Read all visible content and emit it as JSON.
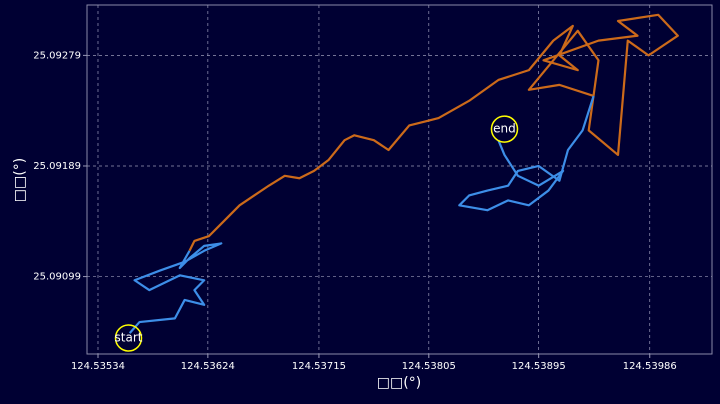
{
  "chart_data": {
    "type": "line",
    "xlabel": "□□(°)",
    "ylabel": "□□(°)",
    "xlim": [
      124.53525,
      124.54037
    ],
    "ylim": [
      25.09036,
      25.0932
    ],
    "xticks": [
      124.53534,
      124.53624,
      124.53715,
      124.53805,
      124.53895,
      124.53986
    ],
    "yticks": [
      25.09099,
      25.09189,
      25.09279
    ],
    "grid": true,
    "series": [
      {
        "color": "#3d8ee8",
        "x": [
          124.5356,
          124.53568,
          124.53597,
          124.53605,
          124.53621,
          124.53613,
          124.53621,
          124.53601,
          124.53576,
          124.53564,
          124.53585,
          124.53605,
          124.53621,
          124.53635,
          124.53621,
          124.53609,
          124.53601,
          124.53609
        ],
        "values": [
          25.09053,
          25.09062,
          25.09065,
          25.0908,
          25.09076,
          25.09088,
          25.09096,
          25.091,
          25.09088,
          25.09096,
          25.09104,
          25.09111,
          25.0912,
          25.09126,
          25.09124,
          25.09114,
          25.09106,
          25.0912
        ]
      },
      {
        "color": "#cc6a1a",
        "x": [
          124.53609,
          124.53613,
          124.53625,
          124.53638,
          124.5365,
          124.53662,
          124.53674,
          124.53687,
          124.53699,
          124.53711,
          124.53723,
          124.53736,
          124.53744,
          124.5376,
          124.53772,
          124.53789,
          124.53805,
          124.53813,
          124.53838,
          124.53862,
          124.53887,
          124.53907,
          124.53923,
          124.53912,
          124.53927,
          124.53899,
          124.53944,
          124.53976,
          124.5396,
          124.53993,
          124.54009,
          124.53985,
          124.53968,
          124.5396,
          124.53936,
          124.53944,
          124.53927,
          124.53887,
          124.53912,
          124.5394
        ],
        "values": [
          25.0912,
          25.09128,
          25.09132,
          25.09145,
          25.09157,
          25.09165,
          25.09173,
          25.09181,
          25.09179,
          25.09185,
          25.09194,
          25.0921,
          25.09214,
          25.0921,
          25.09202,
          25.09222,
          25.09226,
          25.09228,
          25.09242,
          25.09259,
          25.09267,
          25.09291,
          25.09303,
          25.09279,
          25.09267,
          25.09275,
          25.09291,
          25.09295,
          25.09307,
          25.09312,
          25.09295,
          25.09279,
          25.09291,
          25.09198,
          25.09218,
          25.09275,
          25.09299,
          25.09251,
          25.09255,
          25.09246
        ]
      },
      {
        "color": "#3d8ee8",
        "x": [
          124.5394,
          124.53931,
          124.53919,
          124.53912,
          124.53895,
          124.53878,
          124.5387,
          124.53853,
          124.53838,
          124.5383,
          124.53853,
          124.5387,
          124.53887,
          124.53903,
          124.53915,
          124.53895,
          124.53878,
          124.53867,
          124.53862
        ],
        "values": [
          25.09246,
          25.09218,
          25.09202,
          25.09177,
          25.09189,
          25.09185,
          25.09173,
          25.09169,
          25.09165,
          25.09157,
          25.09153,
          25.09161,
          25.09157,
          25.09169,
          25.09185,
          25.09173,
          25.09181,
          25.09198,
          25.0921
        ]
      }
    ],
    "annotations": [
      {
        "text": "start",
        "x": 124.53559,
        "y": 25.09049
      },
      {
        "text": "end",
        "x": 124.53867,
        "y": 25.09219
      }
    ]
  }
}
